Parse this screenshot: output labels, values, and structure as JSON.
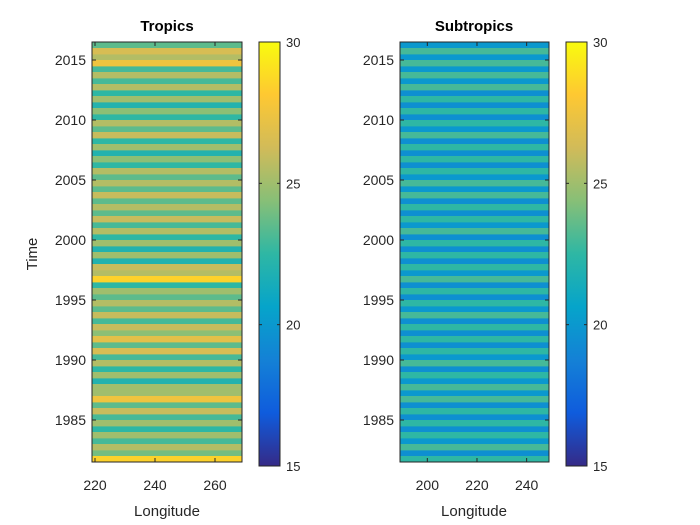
{
  "chart_data": [
    {
      "type": "heatmap",
      "title": "Tropics",
      "xlabel": "Longitude",
      "ylabel": "Time",
      "xlim": [
        219,
        269
      ],
      "ylim": [
        1981.5,
        2016.5
      ],
      "xticks": [
        220,
        240,
        260
      ],
      "yticks": [
        1985,
        1990,
        1995,
        2000,
        2005,
        2010,
        2015
      ],
      "colorbar": {
        "limits": [
          15,
          30
        ],
        "ticks": [
          15,
          20,
          25,
          30
        ]
      },
      "colormap": "parula",
      "grid": false,
      "rows_per_year": 2,
      "years": [
        1982,
        1983,
        1984,
        1985,
        1986,
        1987,
        1988,
        1989,
        1990,
        1991,
        1992,
        1993,
        1994,
        1995,
        1996,
        1997,
        1998,
        1999,
        2000,
        2001,
        2002,
        2003,
        2004,
        2005,
        2006,
        2007,
        2008,
        2009,
        2010,
        2011,
        2012,
        2013,
        2014,
        2015,
        2016
      ],
      "values_warm_phase": [
        28.5,
        25.5,
        25.0,
        25.0,
        26.0,
        27.5,
        25.0,
        25.0,
        25.5,
        26.5,
        27.0,
        26.0,
        26.0,
        25.5,
        25.0,
        28.5,
        26.0,
        25.0,
        25.0,
        25.5,
        26.0,
        25.5,
        26.0,
        25.5,
        25.5,
        24.5,
        25.0,
        26.0,
        25.5,
        24.5,
        25.0,
        25.5,
        25.5,
        27.5,
        26.5
      ],
      "values_cool_phase": [
        24.0,
        23.0,
        22.5,
        23.0,
        23.5,
        25.0,
        22.0,
        22.5,
        23.0,
        23.5,
        24.5,
        23.0,
        23.5,
        23.5,
        22.5,
        25.5,
        22.0,
        22.0,
        22.5,
        23.0,
        23.5,
        23.5,
        23.5,
        23.5,
        22.5,
        22.0,
        22.5,
        23.5,
        22.5,
        22.0,
        22.5,
        23.0,
        23.0,
        25.5,
        23.5
      ]
    },
    {
      "type": "heatmap",
      "title": "Subtropics",
      "xlabel": "Longitude",
      "ylabel": "",
      "xlim": [
        189,
        249
      ],
      "ylim": [
        1981.5,
        2016.5
      ],
      "xticks": [
        200,
        220,
        240
      ],
      "yticks": [
        1985,
        1990,
        1995,
        2000,
        2005,
        2010,
        2015
      ],
      "colorbar": {
        "limits": [
          15,
          30
        ],
        "ticks": [
          15,
          20,
          25,
          30
        ]
      },
      "colormap": "parula",
      "grid": false,
      "rows_per_year": 2,
      "years": [
        1982,
        1983,
        1984,
        1985,
        1986,
        1987,
        1988,
        1989,
        1990,
        1991,
        1992,
        1993,
        1994,
        1995,
        1996,
        1997,
        1998,
        1999,
        2000,
        2001,
        2002,
        2003,
        2004,
        2005,
        2006,
        2007,
        2008,
        2009,
        2010,
        2011,
        2012,
        2013,
        2014,
        2015,
        2016
      ],
      "values_warm_phase": [
        22.5,
        23.0,
        22.5,
        22.5,
        22.5,
        23.0,
        23.0,
        22.5,
        23.0,
        22.5,
        22.5,
        22.5,
        23.0,
        22.5,
        22.5,
        23.0,
        22.5,
        22.5,
        22.5,
        23.0,
        22.5,
        22.5,
        23.0,
        23.0,
        22.5,
        22.5,
        22.5,
        23.0,
        22.5,
        22.5,
        22.5,
        23.0,
        23.0,
        23.0,
        23.0
      ],
      "values_cool_phase": [
        19.5,
        20.0,
        19.5,
        19.5,
        19.5,
        20.0,
        20.0,
        19.5,
        20.0,
        19.5,
        19.5,
        19.5,
        20.0,
        19.5,
        19.5,
        20.0,
        19.5,
        19.5,
        19.5,
        20.0,
        19.5,
        19.5,
        20.0,
        20.0,
        19.5,
        19.5,
        19.5,
        20.0,
        19.5,
        19.5,
        19.5,
        20.0,
        20.0,
        20.0,
        20.0
      ]
    }
  ]
}
